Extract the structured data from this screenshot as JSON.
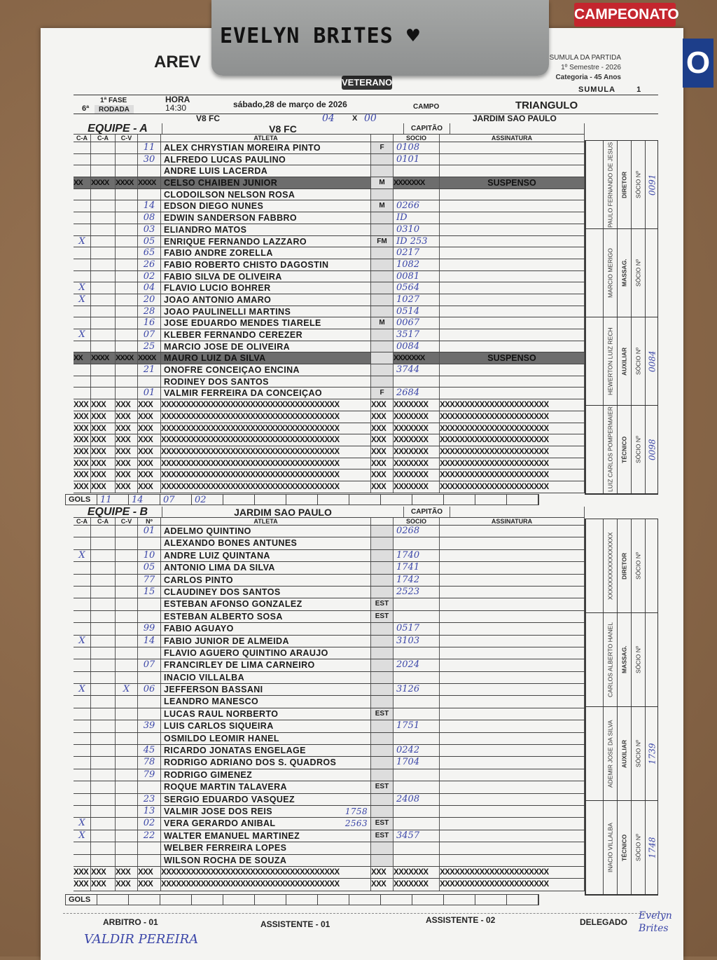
{
  "clip_note": "EVELYN BRITES ♥",
  "sticker": {
    "label": "CAMPEONATO",
    "digit": "O"
  },
  "logo": {
    "text": "AREV",
    "badge": "VETERANO"
  },
  "sumula_info": {
    "line1": "SUMULA DA PARTIDA",
    "line2": "1º Semestre - 2026",
    "line3": "Categoria - 45 Anos",
    "sumula_label": "SUMULA",
    "sumula_number": "1"
  },
  "match": {
    "rodada_num": "6ª",
    "fase": "1ª FASE",
    "rodada": "RODADA",
    "hora_label": "HORA",
    "hora": "14:30",
    "date": "sábado,28 de março de 2026",
    "campo_label": "CAMPO",
    "campo": "TRIANGULO",
    "home": "V8 FC",
    "away": "JARDIM SAO PAULO",
    "home_score": "04",
    "vs": "X",
    "away_score": "00"
  },
  "labels": {
    "capitao": "CAPITÃO",
    "ca": "C-A",
    "cv": "C-V",
    "no": "Nº",
    "atleta": "ATLETA",
    "socio": "SOCIO",
    "assinatura": "ASSINATURA",
    "suspenso": "SUSPENSO",
    "gols": "GOLS",
    "socio_n": "SÓCIO Nº"
  },
  "team_a": {
    "label": "EQUIPE - A",
    "name": "V8 FC",
    "players": [
      {
        "num": "11",
        "name": "ALEX CHRYSTIAN MOREIRA PINTO",
        "tag": "F",
        "socio": "0108"
      },
      {
        "num": "30",
        "name": "ALFREDO LUCAS PAULINO",
        "tag": "",
        "socio": "0101"
      },
      {
        "num": "",
        "name": "ANDRE LUIS LACERDA",
        "tag": "",
        "socio": ""
      },
      {
        "num": "",
        "name": "CELSO CHAIBEN JUNIOR",
        "tag": "M",
        "socio": "",
        "suspended": true
      },
      {
        "num": "",
        "name": "CLODOILSON NELSON ROSA",
        "tag": "",
        "socio": ""
      },
      {
        "num": "14",
        "name": "EDSON DIEGO NUNES",
        "tag": "M",
        "socio": "0266"
      },
      {
        "num": "08",
        "name": "EDWIN SANDERSON FABBRO",
        "tag": "",
        "socio": "ID"
      },
      {
        "num": "03",
        "name": "ELIANDRO MATOS",
        "tag": "",
        "socio": "0310"
      },
      {
        "num": "05",
        "name": "ENRIQUE FERNANDO LAZZARO",
        "tag": "FM",
        "socio": "ID 253",
        "ca1": "X"
      },
      {
        "num": "65",
        "name": "FABIO ANDRE ZORELLA",
        "tag": "",
        "socio": "0217"
      },
      {
        "num": "26",
        "name": "FABIO ROBERTO CHISTO DAGOSTIN",
        "tag": "",
        "socio": "1082"
      },
      {
        "num": "02",
        "name": "FABIO SILVA DE OLIVEIRA",
        "tag": "",
        "socio": "0081"
      },
      {
        "num": "04",
        "name": "FLAVIO LUCIO BOHRER",
        "tag": "",
        "socio": "0564",
        "ca1": "X"
      },
      {
        "num": "20",
        "name": "JOAO ANTONIO AMARO",
        "tag": "",
        "socio": "1027",
        "ca1": "X"
      },
      {
        "num": "28",
        "name": "JOAO PAULINELLI MARTINS",
        "tag": "",
        "socio": "0514"
      },
      {
        "num": "16",
        "name": "JOSE EDUARDO MENDES TIARELE",
        "tag": "M",
        "socio": "0067"
      },
      {
        "num": "07",
        "name": "KLEBER FERNANDO CEREZER",
        "tag": "",
        "socio": "3517",
        "ca1": "X"
      },
      {
        "num": "25",
        "name": "MARCIO JOSE DE OLIVEIRA",
        "tag": "",
        "socio": "0084"
      },
      {
        "num": "",
        "name": "MAURO LUIZ DA SILVA",
        "tag": "",
        "socio": "",
        "suspended": true
      },
      {
        "num": "21",
        "name": "ONOFRE CONCEIÇAO ENCINA",
        "tag": "",
        "socio": "3744"
      },
      {
        "num": "",
        "name": "RODINEY DOS SANTOS",
        "tag": "",
        "socio": ""
      },
      {
        "num": "01",
        "name": "VALMIR FERREIRA DA CONCEIÇAO",
        "tag": "F",
        "socio": "2684"
      }
    ],
    "filler_rows": 8,
    "gols": [
      "11",
      "14",
      "07",
      "02"
    ],
    "staff": [
      {
        "role": "DIRETOR",
        "name": "PAULO FERNANDO DE JESUS",
        "socio": "0091"
      },
      {
        "role": "MASSAG.",
        "name": "MARCIO MERIGO",
        "socio": ""
      },
      {
        "role": "AUXILIAR",
        "name": "HEWERTON LUIZ RECH",
        "socio": "0084"
      },
      {
        "role": "TÉCNICO",
        "name": "LUIZ CARLOS POMPERMAIER",
        "socio": "0098"
      }
    ]
  },
  "team_b": {
    "label": "EQUIPE - B",
    "name": "JARDIM SAO PAULO",
    "players": [
      {
        "num": "01",
        "name": "ADELMO QUINTINO",
        "tag": "",
        "socio": "0268"
      },
      {
        "num": "",
        "name": "ALEXANDO BONES ANTUNES",
        "tag": "",
        "socio": ""
      },
      {
        "num": "10",
        "name": "ANDRE LUIZ QUINTANA",
        "tag": "",
        "socio": "1740",
        "ca1": "X"
      },
      {
        "num": "05",
        "name": "ANTONIO LIMA DA SILVA",
        "tag": "",
        "socio": "1741"
      },
      {
        "num": "77",
        "name": "CARLOS PINTO",
        "tag": "",
        "socio": "1742"
      },
      {
        "num": "15",
        "name": "CLAUDINEY DOS SANTOS",
        "tag": "",
        "socio": "2523"
      },
      {
        "num": "",
        "name": "ESTEBAN AFONSO GONZALEZ",
        "tag": "EST",
        "socio": ""
      },
      {
        "num": "",
        "name": "ESTEBAN ALBERTO SOSA",
        "tag": "EST",
        "socio": ""
      },
      {
        "num": "99",
        "name": "FABIO AGUAYO",
        "tag": "",
        "socio": "0517"
      },
      {
        "num": "14",
        "name": "FABIO JUNIOR DE ALMEIDA",
        "tag": "",
        "socio": "3103",
        "ca1": "X"
      },
      {
        "num": "",
        "name": "FLAVIO AGUERO QUINTINO ARAUJO",
        "tag": "",
        "socio": ""
      },
      {
        "num": "07",
        "name": "FRANCIRLEY DE LIMA CARNEIRO",
        "tag": "",
        "socio": "2024"
      },
      {
        "num": "",
        "name": "INACIO VILLALBA",
        "tag": "",
        "socio": ""
      },
      {
        "num": "06",
        "name": "JEFFERSON BASSANI",
        "tag": "",
        "socio": "3126",
        "ca1": "X",
        "cv": "X"
      },
      {
        "num": "",
        "name": "LEANDRO MANESCO",
        "tag": "",
        "socio": ""
      },
      {
        "num": "",
        "name": "LUCAS RAUL NORBERTO",
        "tag": "EST",
        "socio": ""
      },
      {
        "num": "39",
        "name": "LUIS CARLOS SIQUEIRA",
        "tag": "",
        "socio": "1751"
      },
      {
        "num": "",
        "name": "OSMILDO LEOMIR HANEL",
        "tag": "",
        "socio": ""
      },
      {
        "num": "45",
        "name": "RICARDO JONATAS ENGELAGE",
        "tag": "",
        "socio": "0242"
      },
      {
        "num": "78",
        "name": "RODRIGO ADRIANO DOS S. QUADROS",
        "tag": "",
        "socio": "1704"
      },
      {
        "num": "79",
        "name": "RODRIGO GIMENEZ",
        "tag": "",
        "socio": ""
      },
      {
        "num": "",
        "name": "ROQUE MARTIN TALAVERA",
        "tag": "EST",
        "socio": ""
      },
      {
        "num": "23",
        "name": "SERGIO EDUARDO VASQUEZ",
        "tag": "",
        "socio": "2408"
      },
      {
        "num": "13",
        "name": "VALMIR JOSE DOS REIS",
        "tag": "",
        "socio": "",
        "note": "1758"
      },
      {
        "num": "02",
        "name": "VERA GERARDO ANIBAL",
        "tag": "EST",
        "socio": "",
        "note": "2563",
        "ca1": "X"
      },
      {
        "num": "22",
        "name": "WALTER EMANUEL MARTINEZ",
        "tag": "EST",
        "socio": "3457",
        "ca1": "X"
      },
      {
        "num": "",
        "name": "WELBER FERREIRA LOPES",
        "tag": "",
        "socio": ""
      },
      {
        "num": "",
        "name": "WILSON ROCHA DE SOUZA",
        "tag": "",
        "socio": ""
      }
    ],
    "filler_rows": 2,
    "gols": [
      "",
      "",
      "",
      ""
    ],
    "staff": [
      {
        "role": "DIRETOR",
        "name": "XXXXXXXXXXXXXXXXX",
        "socio": ""
      },
      {
        "role": "MASSAG.",
        "name": "CARLOS ALBERTO HANEL",
        "socio": ""
      },
      {
        "role": "AUXILIAR",
        "name": "ADEMIR JOSE DA SILVA",
        "socio": "1739"
      },
      {
        "role": "TÉCNICO",
        "name": "INACIO VILLALBA",
        "socio": "1748"
      }
    ]
  },
  "footer": {
    "arbitro": "ARBITRO - 01",
    "assistente1": "ASSISTENTE - 01",
    "assistente2": "ASSISTENTE - 02",
    "delegado": "DELEGADO",
    "arbitro_name": "VALDIR PEREIRA",
    "delegado_name": "Evelyn Brites"
  },
  "colors": {
    "ink": "#3b46a8",
    "suspended_row": "#6d6d6d",
    "sticker_red": "#c4262e"
  }
}
